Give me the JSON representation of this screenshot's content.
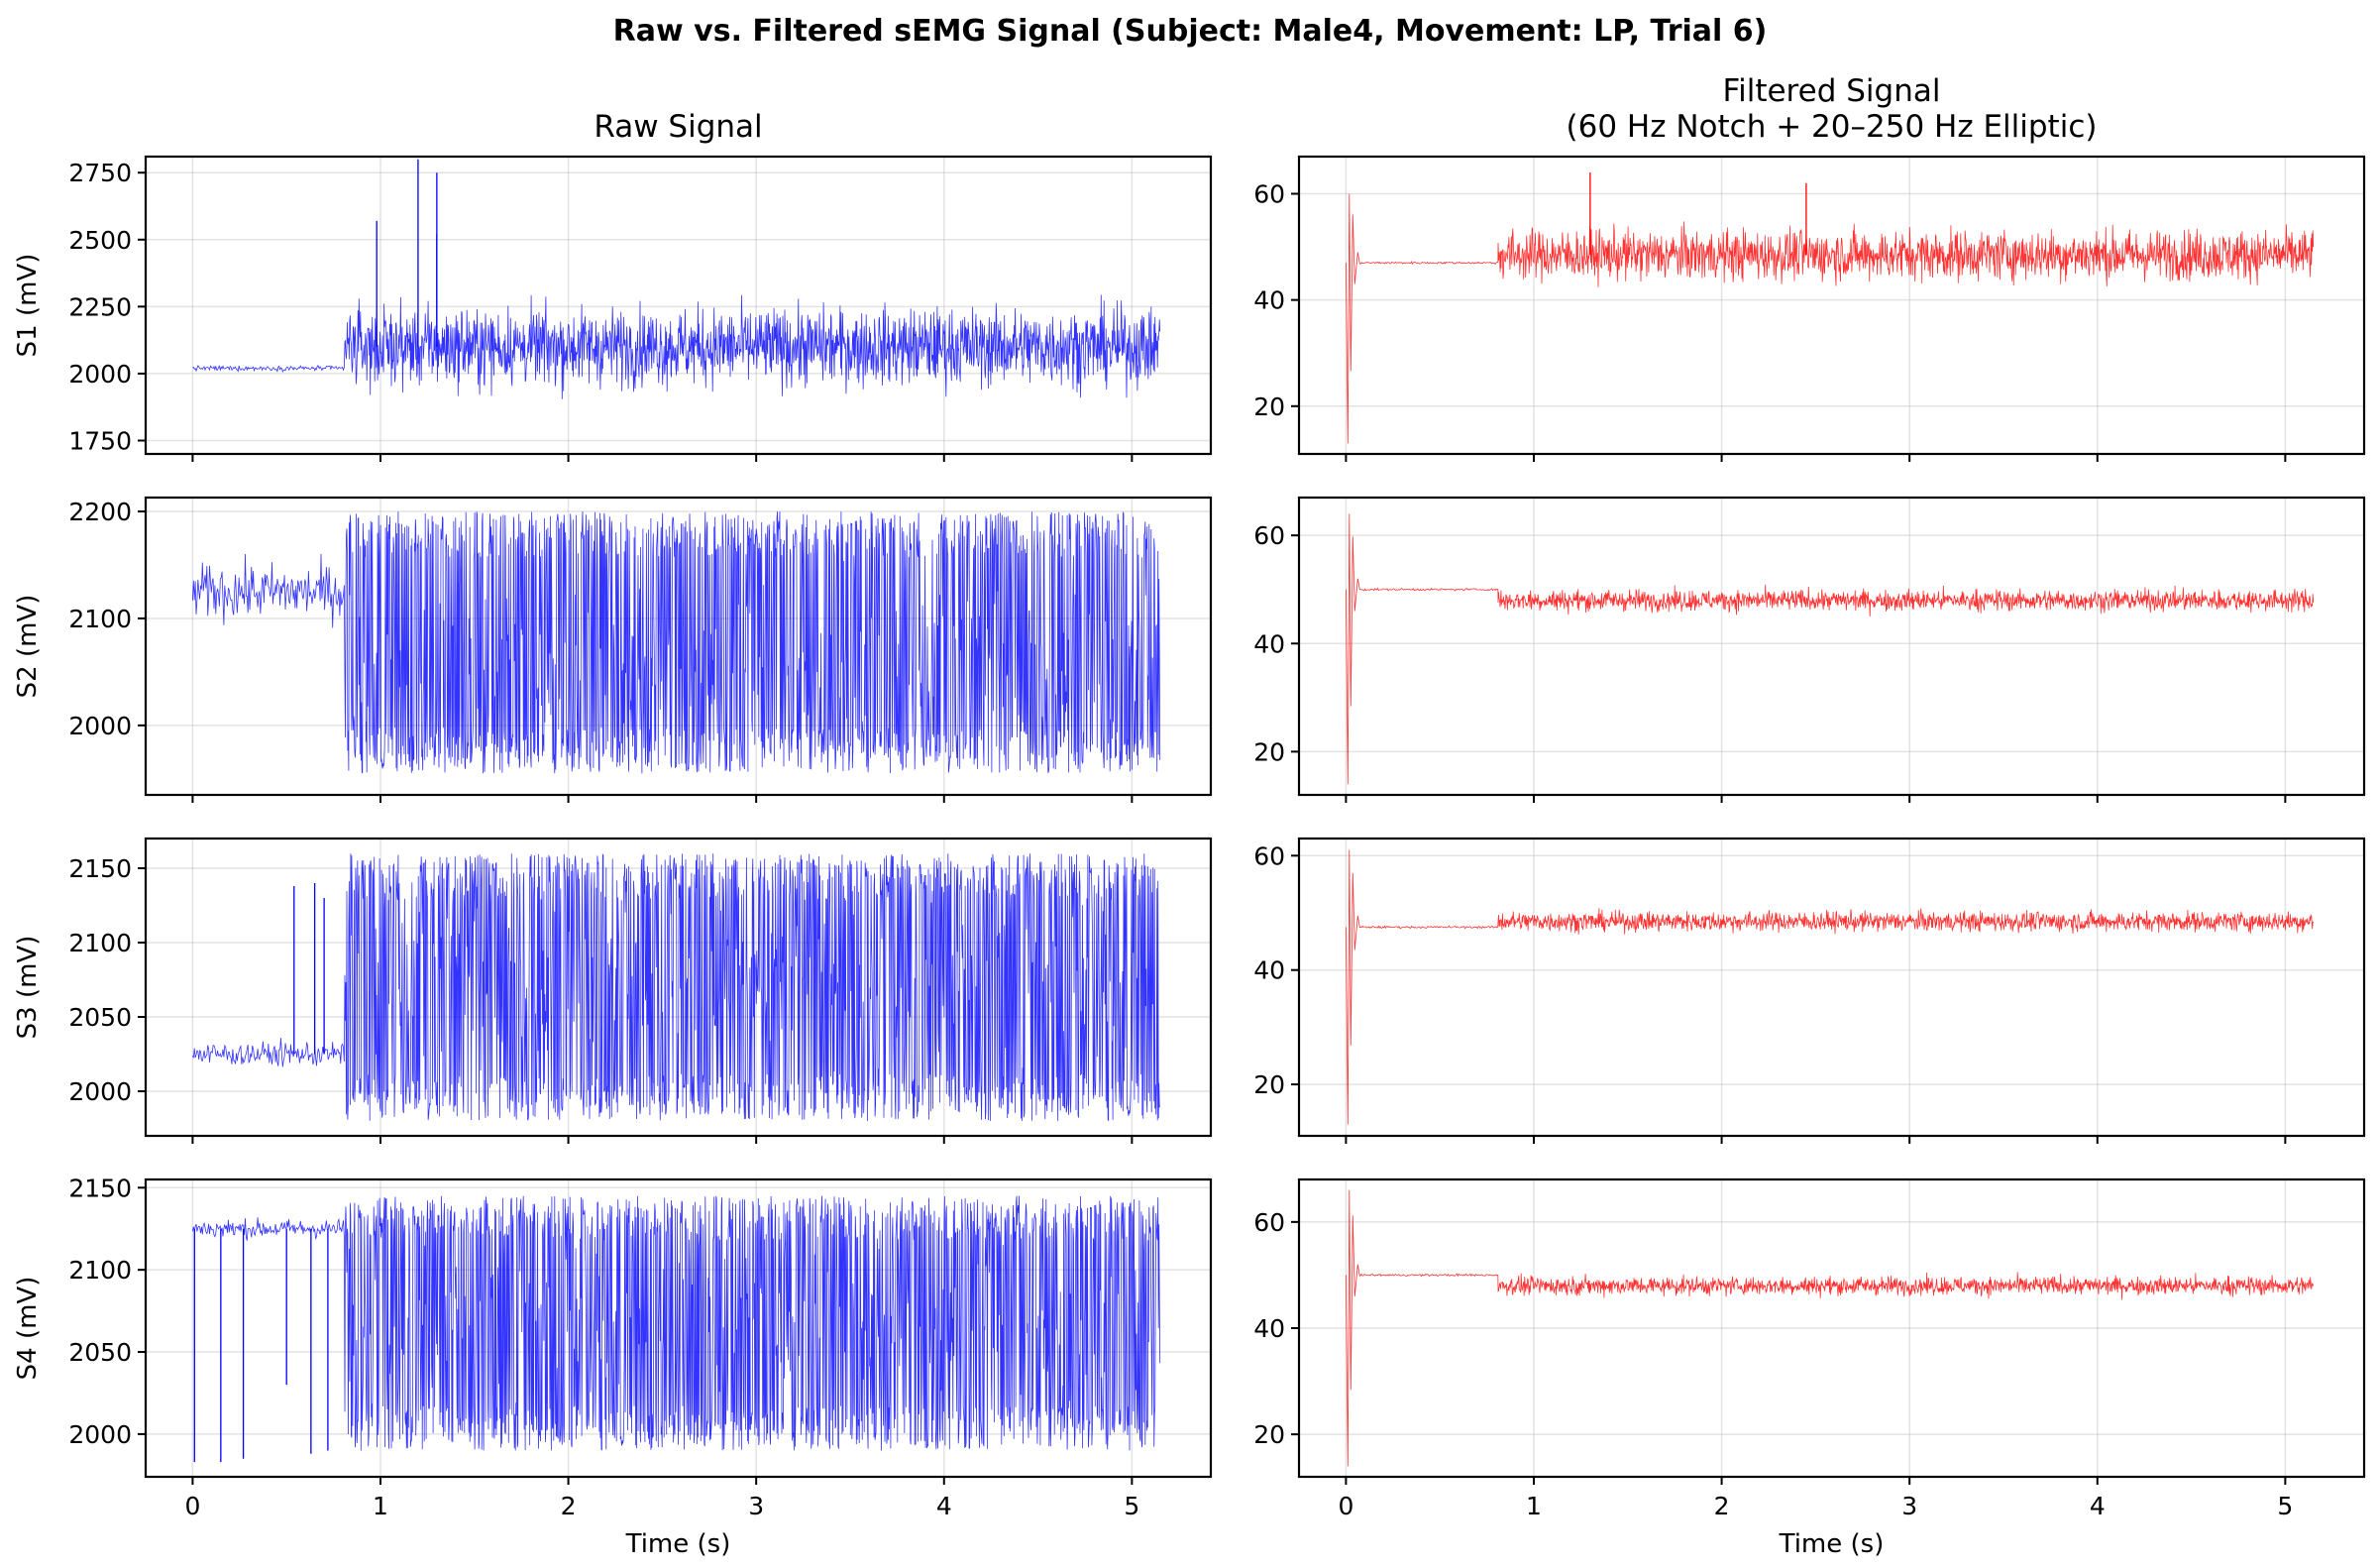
{
  "title": "Raw vs. Filtered sEMG Signal (Subject: Male4, Movement: LP, Trial 6)",
  "columns": [
    {
      "title_lines": [
        "Raw Signal"
      ]
    },
    {
      "title_lines": [
        "Filtered Signal",
        "(60 Hz Notch + 20–250 Hz Elliptic)"
      ]
    }
  ],
  "xlabel": "Time (s)",
  "colors": {
    "raw": "#0000ff",
    "filtered": "#ff0000"
  },
  "chart_data": [
    {
      "type": "line",
      "channel": "S1",
      "signal": "raw",
      "ylabel": "S1 (mV)",
      "xlim": [
        -0.25,
        5.42
      ],
      "ylim": [
        1700,
        2810
      ],
      "yticks": [
        1750,
        2000,
        2250,
        2500,
        2750
      ],
      "xticks": [
        0,
        1,
        2,
        3,
        4,
        5
      ],
      "baseline_before_onset": 2020,
      "quiet_band": [
        2000,
        2040
      ],
      "onset_s": 0.81,
      "end_s": 5.15,
      "active_mean": 2100,
      "active_band": [
        1780,
        2450
      ],
      "peaks": [
        {
          "x": 1.2,
          "y": 2800
        },
        {
          "x": 1.3,
          "y": 2750
        },
        {
          "x": 0.98,
          "y": 2570
        },
        {
          "x": 1.3,
          "y": 2520
        }
      ],
      "grid": true
    },
    {
      "type": "line",
      "channel": "S1",
      "signal": "filtered",
      "ylabel": "",
      "xlim": [
        -0.25,
        5.42
      ],
      "ylim": [
        11,
        67
      ],
      "yticks": [
        20,
        40,
        60
      ],
      "xticks": [
        0,
        1,
        2,
        3,
        4,
        5
      ],
      "baseline_before_onset": 47,
      "onset_s": 0.81,
      "end_s": 5.15,
      "initial_transient": {
        "x": 0.01,
        "min": 13,
        "max": 60
      },
      "active_mean": 48.5,
      "active_band": [
        40,
        62
      ],
      "peaks": [
        {
          "x": 1.3,
          "y": 64
        },
        {
          "x": 2.45,
          "y": 62
        }
      ],
      "grid": true
    },
    {
      "type": "line",
      "channel": "S2",
      "signal": "raw",
      "ylabel": "S2 (mV)",
      "xlim": [
        -0.25,
        5.42
      ],
      "ylim": [
        1935,
        2213
      ],
      "yticks": [
        2000,
        2100,
        2200
      ],
      "xticks": [
        0,
        1,
        2,
        3,
        4,
        5
      ],
      "baseline_before_onset": 2125,
      "quiet_band": [
        2070,
        2180
      ],
      "onset_s": 0.81,
      "end_s": 5.15,
      "active_mean": 2060,
      "active_band": [
        1955,
        2200
      ],
      "grid": true
    },
    {
      "type": "line",
      "channel": "S2",
      "signal": "filtered",
      "ylabel": "",
      "xlim": [
        -0.25,
        5.42
      ],
      "ylim": [
        12,
        67
      ],
      "yticks": [
        20,
        40,
        60
      ],
      "xticks": [
        0,
        1,
        2,
        3,
        4,
        5
      ],
      "baseline_before_onset": 50,
      "onset_s": 0.81,
      "end_s": 5.15,
      "initial_transient": {
        "x": 0.01,
        "min": 14,
        "max": 64
      },
      "active_mean": 48,
      "active_band": [
        44,
        53
      ],
      "grid": true
    },
    {
      "type": "line",
      "channel": "S3",
      "signal": "raw",
      "ylabel": "S3 (mV)",
      "xlim": [
        -0.25,
        5.42
      ],
      "ylim": [
        1970,
        2170
      ],
      "yticks": [
        2000,
        2050,
        2100,
        2150
      ],
      "xticks": [
        0,
        1,
        2,
        3,
        4,
        5
      ],
      "baseline_before_onset": 2025,
      "quiet_band": [
        2010,
        2045
      ],
      "onset_s": 0.81,
      "end_s": 5.15,
      "active_mean": 2075,
      "active_band": [
        1980,
        2160
      ],
      "peaks": [
        {
          "x": 0.54,
          "y": 2138
        },
        {
          "x": 0.65,
          "y": 2140
        },
        {
          "x": 0.7,
          "y": 2130
        }
      ],
      "grid": true
    },
    {
      "type": "line",
      "channel": "S3",
      "signal": "filtered",
      "ylabel": "",
      "xlim": [
        -0.25,
        5.42
      ],
      "ylim": [
        11,
        63
      ],
      "yticks": [
        20,
        40,
        60
      ],
      "xticks": [
        0,
        1,
        2,
        3,
        4,
        5
      ],
      "baseline_before_onset": 47.5,
      "onset_s": 0.81,
      "end_s": 5.15,
      "initial_transient": {
        "x": 0.01,
        "min": 13,
        "max": 61
      },
      "active_mean": 48.5,
      "active_band": [
        45,
        53
      ],
      "grid": true
    },
    {
      "type": "line",
      "channel": "S4",
      "signal": "raw",
      "ylabel": "S4 (mV)",
      "xlim": [
        -0.25,
        5.42
      ],
      "ylim": [
        1974,
        2155
      ],
      "yticks": [
        2000,
        2050,
        2100,
        2150
      ],
      "xticks": [
        0,
        1,
        2,
        3,
        4,
        5
      ],
      "baseline_before_onset": 2125,
      "quiet_band": [
        2115,
        2140
      ],
      "onset_s": 0.81,
      "end_s": 5.15,
      "active_mean": 2070,
      "active_band": [
        1990,
        2145
      ],
      "dips": [
        {
          "x": 0.01,
          "y": 1983
        },
        {
          "x": 0.15,
          "y": 1983
        },
        {
          "x": 0.27,
          "y": 1985
        },
        {
          "x": 0.5,
          "y": 2030
        },
        {
          "x": 0.63,
          "y": 1988
        },
        {
          "x": 0.72,
          "y": 1990
        }
      ],
      "grid": true
    },
    {
      "type": "line",
      "channel": "S4",
      "signal": "filtered",
      "ylabel": "",
      "xlim": [
        -0.25,
        5.42
      ],
      "ylim": [
        12,
        68
      ],
      "yticks": [
        20,
        40,
        60
      ],
      "xticks": [
        0,
        1,
        2,
        3,
        4,
        5
      ],
      "baseline_before_onset": 50,
      "onset_s": 0.81,
      "end_s": 5.15,
      "initial_transient": {
        "x": 0.01,
        "min": 14,
        "max": 66
      },
      "active_mean": 48,
      "active_band": [
        44,
        52
      ],
      "grid": true
    }
  ]
}
